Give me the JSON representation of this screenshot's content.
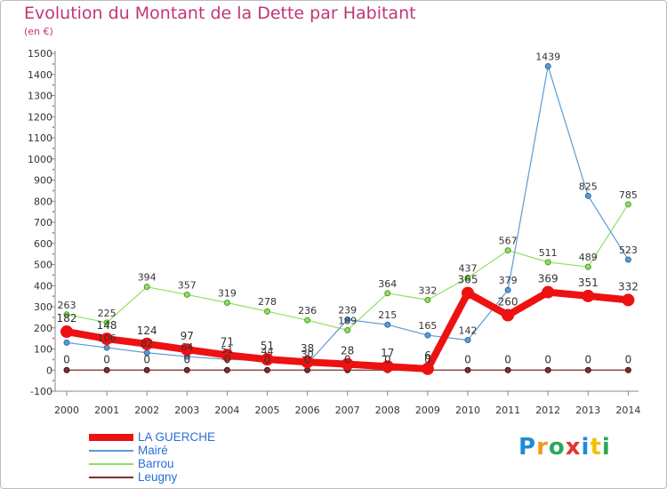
{
  "chart_data": {
    "type": "line",
    "title": "Evolution du Montant de la Dette par Habitant",
    "unit_label": "(en €)",
    "categories": [
      "2000",
      "2001",
      "2002",
      "2003",
      "2004",
      "2005",
      "2006",
      "2007",
      "2008",
      "2009",
      "2010",
      "2011",
      "2012",
      "2013",
      "2014"
    ],
    "ylim": [
      -100,
      1500
    ],
    "yticks": [
      -100,
      0,
      100,
      200,
      300,
      400,
      500,
      600,
      700,
      800,
      900,
      1000,
      1100,
      1200,
      1300,
      1400,
      1500
    ],
    "grid": false,
    "legend_position": "bottom-left",
    "series": [
      {
        "name": "LA GUERCHE",
        "color": "#ee1111",
        "values": [
          182,
          148,
          124,
          97,
          71,
          51,
          38,
          28,
          17,
          6,
          365,
          260,
          369,
          351,
          332
        ],
        "labels": [
          "182",
          "148",
          "124",
          "97",
          "71",
          "51",
          "38",
          "28",
          "17",
          "6",
          "365",
          "260",
          "369",
          "351",
          "332"
        ]
      },
      {
        "name": "Mairé",
        "color": "#5b9bd5",
        "values": [
          130,
          106,
          82,
          64,
          51,
          44,
          30,
          239,
          215,
          165,
          142,
          379,
          1439,
          825,
          523
        ],
        "labels": [
          "",
          "106",
          "82",
          "64",
          "51",
          "44",
          "30",
          "239",
          "215",
          "165",
          "142",
          "379",
          "1439",
          "825",
          "523"
        ]
      },
      {
        "name": "Barrou",
        "color": "#90df63",
        "values": [
          263,
          225,
          394,
          357,
          319,
          278,
          236,
          189,
          364,
          332,
          437,
          567,
          511,
          489,
          785
        ],
        "labels": [
          "263",
          "225",
          "394",
          "357",
          "319",
          "278",
          "236",
          "189",
          "364",
          "332",
          "437",
          "567",
          "511",
          "489",
          "785"
        ]
      },
      {
        "name": "Leugny",
        "color": "#7a3030",
        "values": [
          0,
          0,
          0,
          0,
          0,
          0,
          0,
          0,
          0,
          0,
          0,
          0,
          0,
          0,
          0
        ],
        "labels": [
          "0",
          "0",
          "0",
          "0",
          "0",
          "0",
          "0",
          "0",
          "0",
          "0",
          "0",
          "0",
          "0",
          "0",
          "0"
        ]
      }
    ]
  },
  "logo": {
    "text": "Proxiti"
  }
}
